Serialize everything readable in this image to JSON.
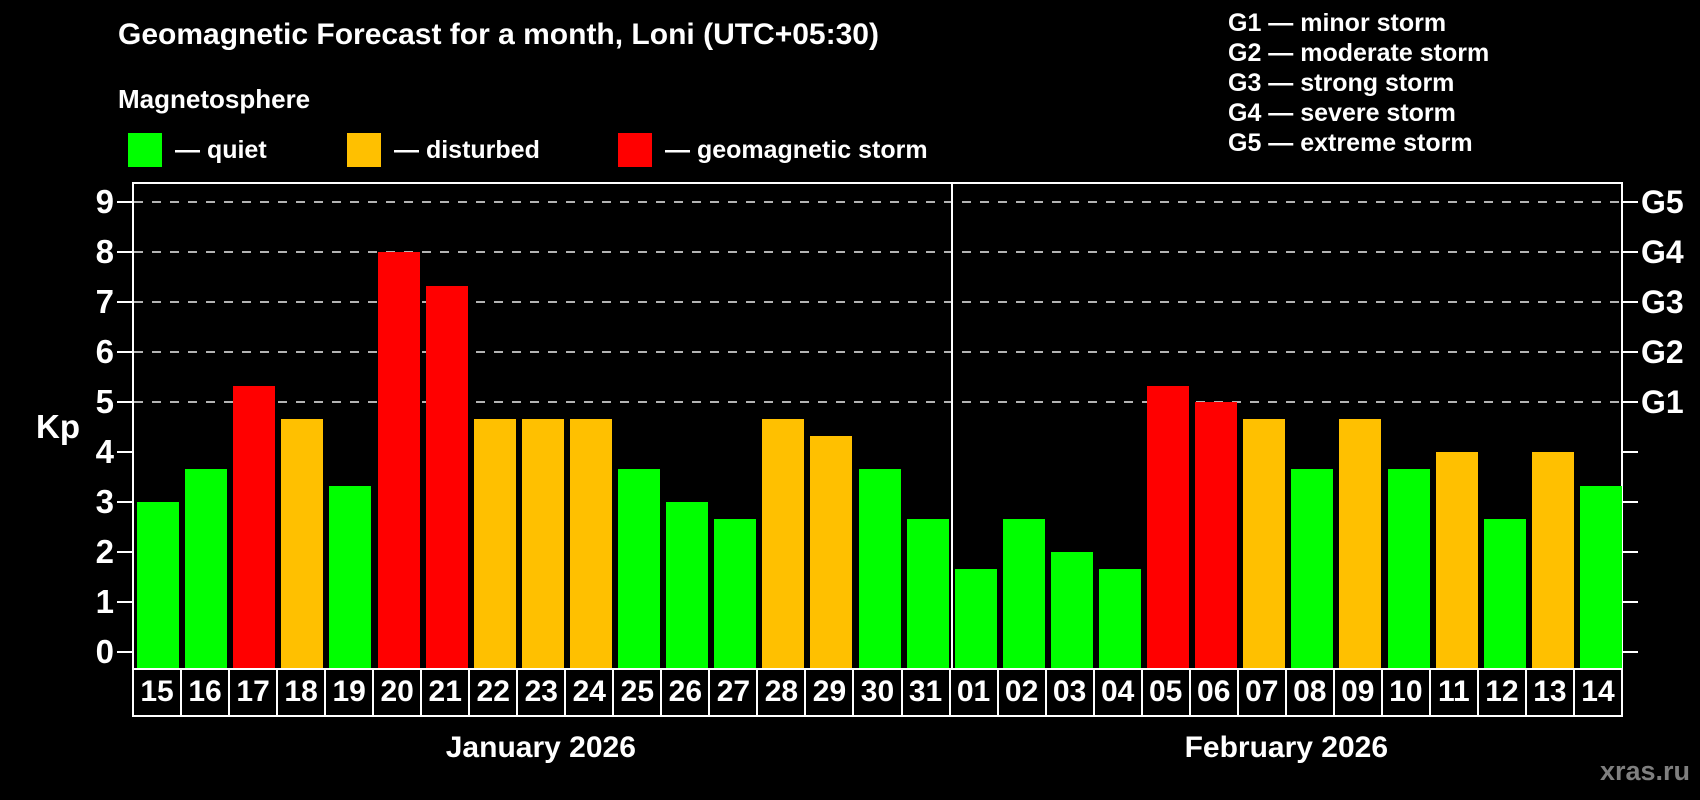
{
  "title": "Geomagnetic Forecast for a month, Loni (UTC+05:30)",
  "subtitle": "Magnetosphere",
  "legend": {
    "items": [
      {
        "label": "— quiet",
        "color": "#00ff00",
        "status": "quiet"
      },
      {
        "label": "— disturbed",
        "color": "#ffc000",
        "status": "disturbed"
      },
      {
        "label": "— geomagnetic storm",
        "color": "#ff0000",
        "status": "storm"
      }
    ]
  },
  "g_legend": [
    {
      "text": "G1 — minor storm"
    },
    {
      "text": "G2 — moderate storm"
    },
    {
      "text": "G3 — strong storm"
    },
    {
      "text": "G4 — severe storm"
    },
    {
      "text": "G5 — extreme storm"
    }
  ],
  "axis": {
    "ylabel": "Kp"
  },
  "watermark": "xras.ru",
  "chart_data": {
    "type": "bar",
    "title": "Geomagnetic Forecast for a month, Loni (UTC+05:30)",
    "ylabel": "Kp",
    "ylim": [
      0,
      9
    ],
    "yticks": [
      0,
      1,
      2,
      3,
      4,
      5,
      6,
      7,
      8,
      9
    ],
    "gridlines_at": [
      5,
      6,
      7,
      8,
      9
    ],
    "grid": "dashed",
    "legend_position": "top-left",
    "right_axis_labels": [
      {
        "kp": 5,
        "label": "G1"
      },
      {
        "kp": 6,
        "label": "G2"
      },
      {
        "kp": 7,
        "label": "G3"
      },
      {
        "kp": 8,
        "label": "G4"
      },
      {
        "kp": 9,
        "label": "G5"
      }
    ],
    "months": [
      {
        "label": "January 2026",
        "days": 17
      },
      {
        "label": "February 2026",
        "days": 14
      }
    ],
    "categories": [
      "15",
      "16",
      "17",
      "18",
      "19",
      "20",
      "21",
      "22",
      "23",
      "24",
      "25",
      "26",
      "27",
      "28",
      "29",
      "30",
      "31",
      "01",
      "02",
      "03",
      "04",
      "05",
      "06",
      "07",
      "08",
      "09",
      "10",
      "11",
      "12",
      "13",
      "14"
    ],
    "series": [
      {
        "name": "Kp forecast",
        "values": [
          3.0,
          3.67,
          5.33,
          4.67,
          3.33,
          8.0,
          7.33,
          4.67,
          4.67,
          4.67,
          3.67,
          3.0,
          2.67,
          4.67,
          4.33,
          3.67,
          2.67,
          1.67,
          2.67,
          2.0,
          1.67,
          5.33,
          5.0,
          4.67,
          3.67,
          4.67,
          3.67,
          4.0,
          2.67,
          4.0,
          3.33
        ]
      }
    ],
    "statuses": [
      "quiet",
      "quiet",
      "storm",
      "disturbed",
      "quiet",
      "storm",
      "storm",
      "disturbed",
      "disturbed",
      "disturbed",
      "quiet",
      "quiet",
      "quiet",
      "disturbed",
      "disturbed",
      "quiet",
      "quiet",
      "quiet",
      "quiet",
      "quiet",
      "quiet",
      "storm",
      "storm",
      "disturbed",
      "quiet",
      "disturbed",
      "quiet",
      "disturbed",
      "quiet",
      "disturbed",
      "quiet"
    ],
    "status_colors": {
      "quiet": "#00ff00",
      "disturbed": "#ffc000",
      "storm": "#ff0000"
    }
  }
}
